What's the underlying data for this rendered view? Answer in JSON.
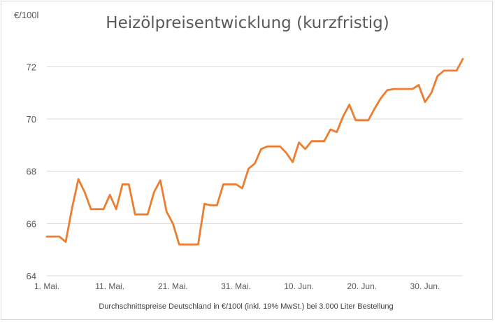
{
  "chart_data": {
    "type": "line",
    "title": "Heizölpreisentwicklung (kurzfristig)",
    "ylabel": "€/100l",
    "xlabel": "Durchschnittspreise Deutschland in €/100l (inkl. 19% MwSt.) bei 3.000 Liter Bestellung",
    "ylim": [
      64,
      73
    ],
    "yticks": [
      64,
      66,
      68,
      70,
      72
    ],
    "grid": true,
    "x_start": "1. Mai.",
    "x_tick_labels": [
      {
        "day": 0,
        "label": "1. Mai."
      },
      {
        "day": 10,
        "label": "11. Mai."
      },
      {
        "day": 20,
        "label": "21. Mai."
      },
      {
        "day": 30,
        "label": "31. Mai."
      },
      {
        "day": 40,
        "label": "10. Jun."
      },
      {
        "day": 50,
        "label": "20. Jun."
      },
      {
        "day": 60,
        "label": "30. Jun."
      }
    ],
    "series": [
      {
        "color": "#ed7d31",
        "points": [
          [
            0,
            65.5
          ],
          [
            2,
            65.5
          ],
          [
            3,
            65.3
          ],
          [
            4,
            66.6
          ],
          [
            5,
            67.7
          ],
          [
            6,
            67.2
          ],
          [
            7,
            66.55
          ],
          [
            8,
            66.55
          ],
          [
            9,
            66.55
          ],
          [
            10,
            67.1
          ],
          [
            11,
            66.55
          ],
          [
            12,
            67.5
          ],
          [
            13,
            67.5
          ],
          [
            14,
            66.35
          ],
          [
            15,
            66.35
          ],
          [
            16,
            66.35
          ],
          [
            17,
            67.2
          ],
          [
            18,
            67.65
          ],
          [
            19,
            66.45
          ],
          [
            20,
            66.0
          ],
          [
            21,
            65.2
          ],
          [
            22,
            65.2
          ],
          [
            23,
            65.2
          ],
          [
            24,
            65.2
          ],
          [
            25,
            66.75
          ],
          [
            26,
            66.7
          ],
          [
            27,
            66.7
          ],
          [
            28,
            67.5
          ],
          [
            29,
            67.5
          ],
          [
            30,
            67.5
          ],
          [
            31,
            67.35
          ],
          [
            32,
            68.1
          ],
          [
            33,
            68.3
          ],
          [
            34,
            68.85
          ],
          [
            35,
            68.95
          ],
          [
            36,
            68.95
          ],
          [
            37,
            68.95
          ],
          [
            38,
            68.7
          ],
          [
            39,
            68.35
          ],
          [
            40,
            69.1
          ],
          [
            41,
            68.85
          ],
          [
            42,
            69.15
          ],
          [
            43,
            69.15
          ],
          [
            44,
            69.15
          ],
          [
            45,
            69.6
          ],
          [
            46,
            69.5
          ],
          [
            47,
            70.1
          ],
          [
            48,
            70.55
          ],
          [
            49,
            69.95
          ],
          [
            50,
            69.95
          ],
          [
            51,
            69.95
          ],
          [
            52,
            70.4
          ],
          [
            53,
            70.8
          ],
          [
            54,
            71.1
          ],
          [
            55,
            71.15
          ],
          [
            56,
            71.15
          ],
          [
            57,
            71.15
          ],
          [
            58,
            71.15
          ],
          [
            59,
            71.3
          ],
          [
            60,
            70.65
          ],
          [
            61,
            71.0
          ],
          [
            62,
            71.65
          ],
          [
            63,
            71.85
          ],
          [
            64,
            71.85
          ],
          [
            65,
            71.85
          ],
          [
            66,
            72.3
          ]
        ]
      }
    ]
  }
}
